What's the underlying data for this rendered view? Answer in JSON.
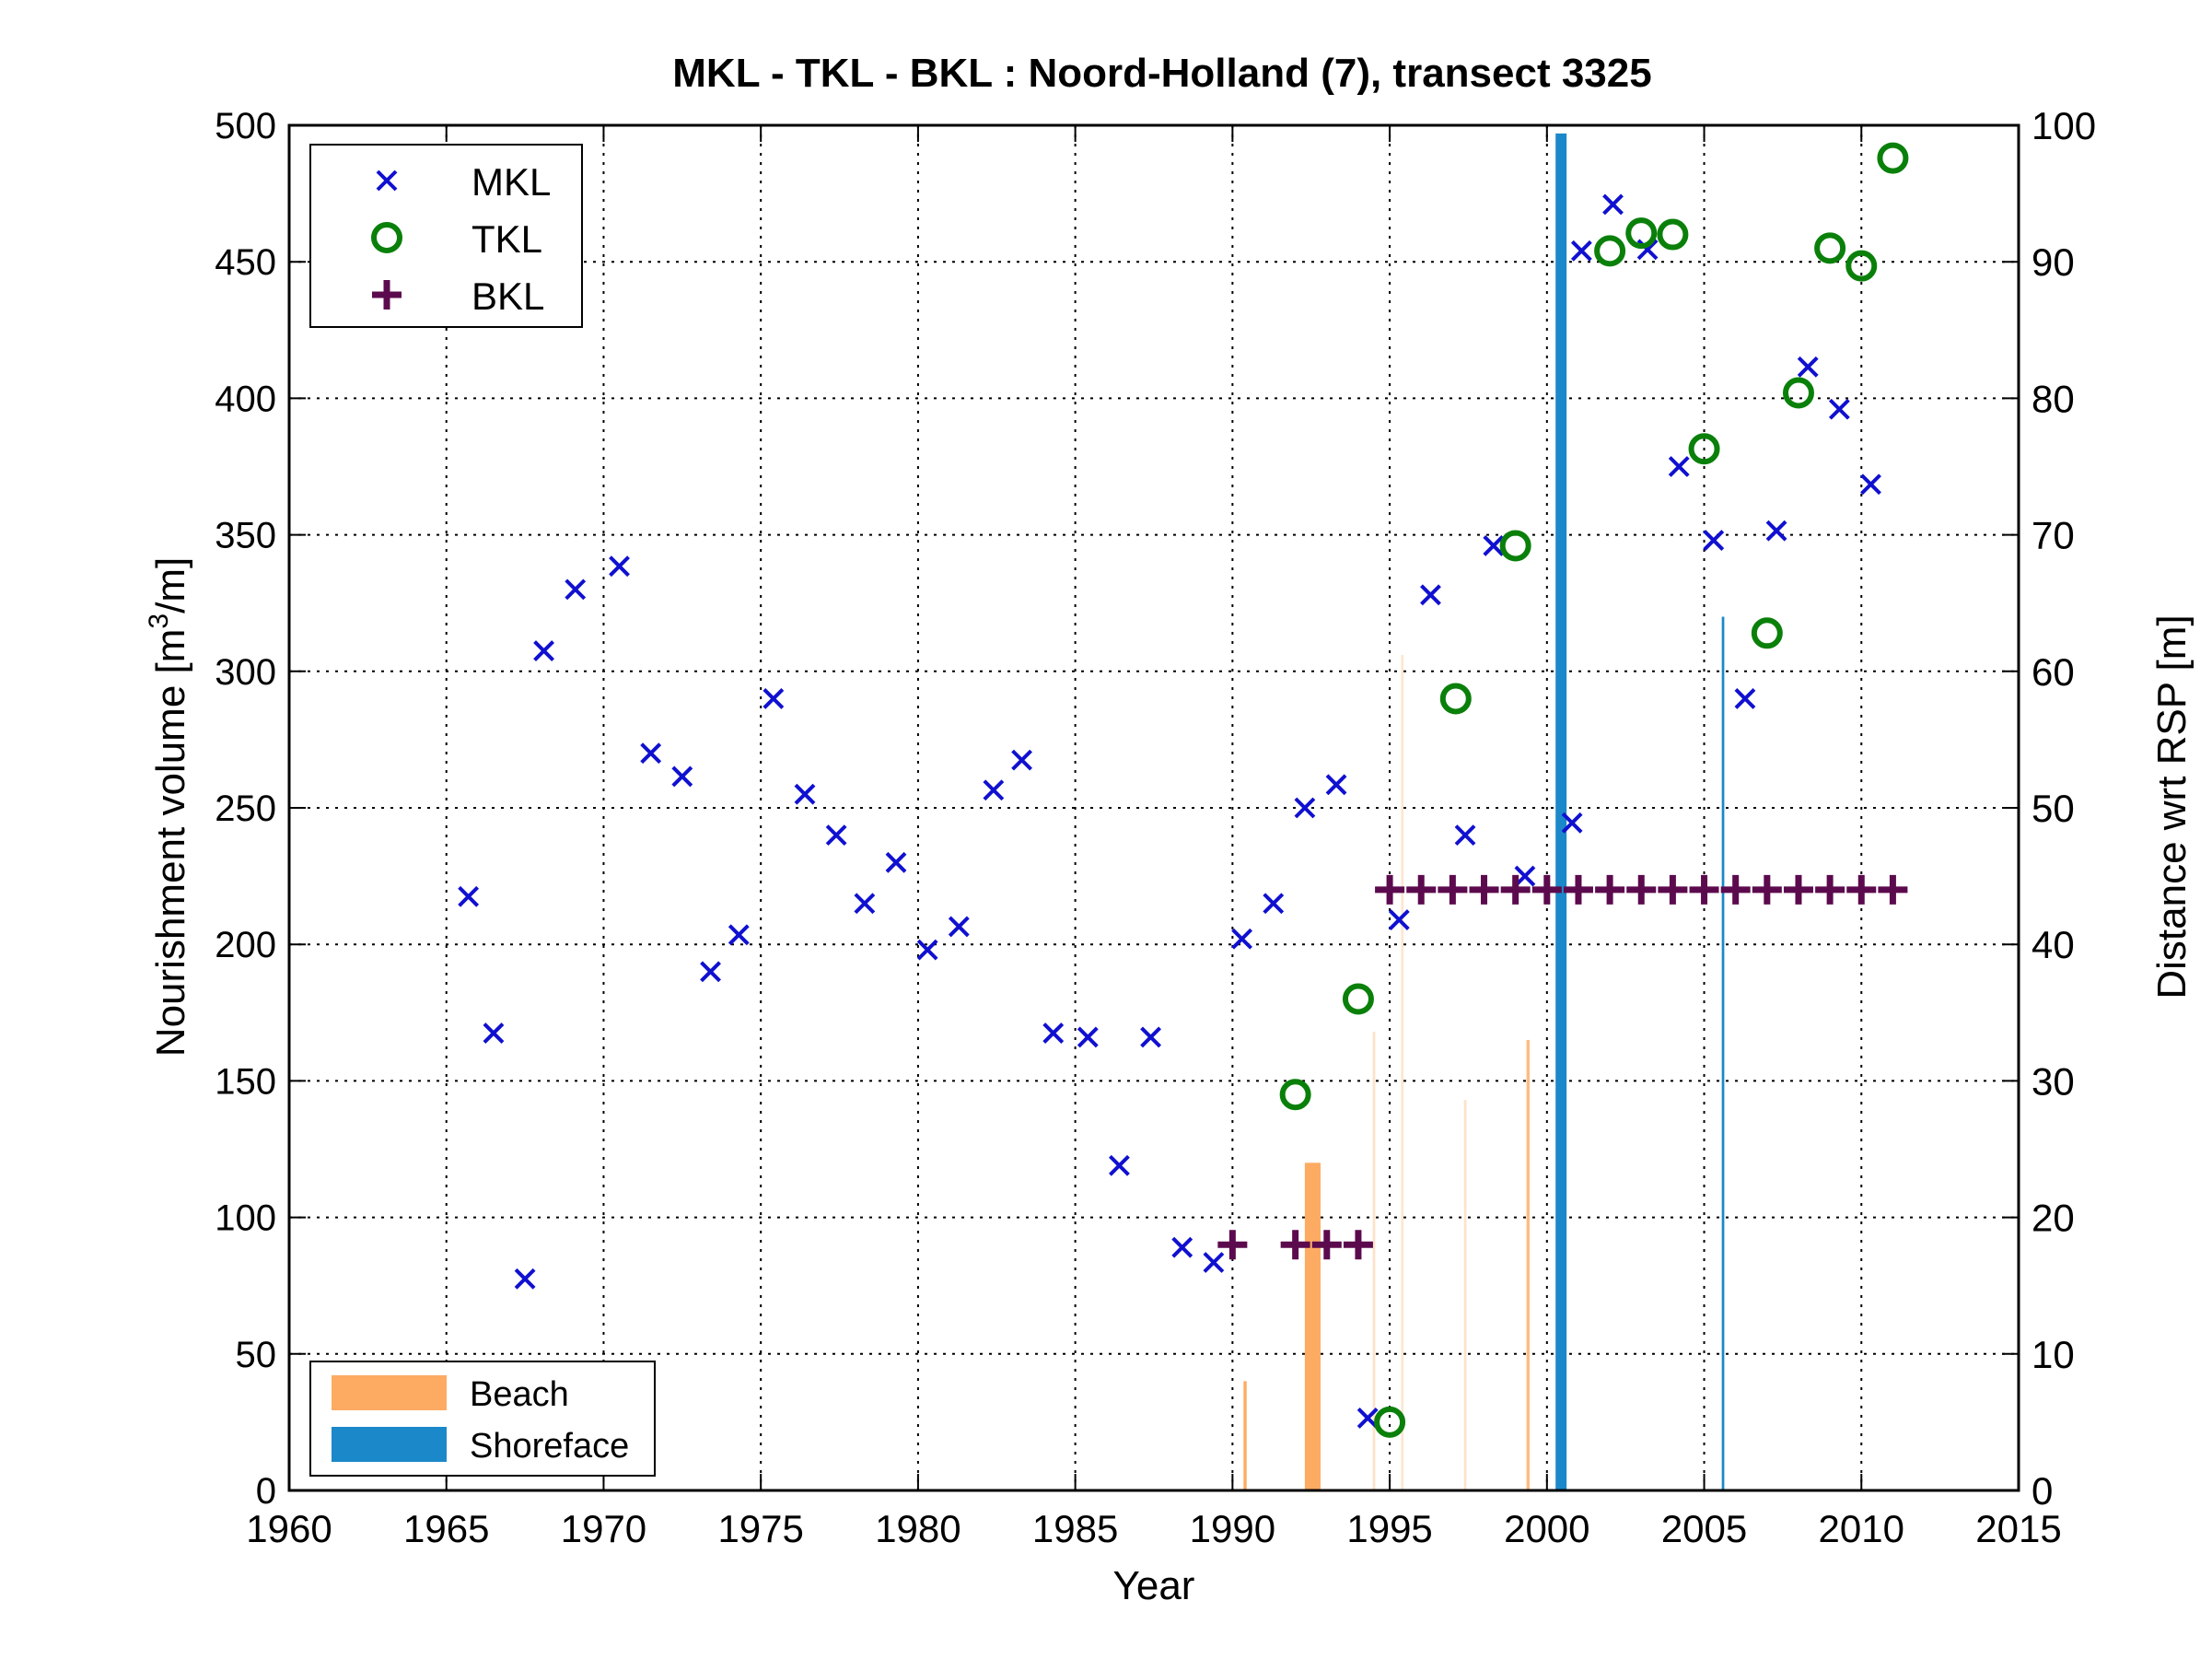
{
  "chart_data": {
    "type": "scatter",
    "title": "MKL - TKL - BKL : Noord-Holland (7), transect 3325",
    "xlabel": "Year",
    "ylabel_left_main": "Nourishment volume [m",
    "ylabel_left_sup": "3",
    "ylabel_left_tail": "/m]",
    "ylabel_right": "Distance wrt RSP [m]",
    "xlim": [
      1960,
      2015
    ],
    "ylim_left": [
      0,
      500
    ],
    "ylim_right": [
      0,
      100
    ],
    "xticks": [
      "1960",
      "1965",
      "1970",
      "1975",
      "1980",
      "1985",
      "1990",
      "1995",
      "2000",
      "2005",
      "2010",
      "2015"
    ],
    "yticks_left": [
      "0",
      "50",
      "100",
      "150",
      "200",
      "250",
      "300",
      "350",
      "400",
      "450",
      "500"
    ],
    "yticks_right": [
      "0",
      "10",
      "20",
      "30",
      "40",
      "50",
      "60",
      "70",
      "80",
      "90",
      "100"
    ],
    "grid": true,
    "colors": {
      "MKL": "#1010d0",
      "TKL": "#0a800a",
      "BKL": "#5c0a4e",
      "Beach": "#fdab63",
      "Shoreface": "#1b88c9"
    },
    "legend_points": {
      "placement": "top-left",
      "entries": [
        "MKL",
        "TKL",
        "BKL"
      ]
    },
    "legend_bars": {
      "placement": "bottom-left",
      "entries": [
        "Beach",
        "Shoreface"
      ]
    },
    "series": [
      {
        "name": "MKL",
        "marker": "x",
        "axis": "right",
        "points": [
          [
            1965.7,
            43.5
          ],
          [
            1966.5,
            33.5
          ],
          [
            1967.5,
            15.5
          ],
          [
            1968.1,
            61.5
          ],
          [
            1969.1,
            66
          ],
          [
            1970.5,
            67.7
          ],
          [
            1971.5,
            54
          ],
          [
            1972.5,
            52.3
          ],
          [
            1973.4,
            38
          ],
          [
            1974.3,
            40.7
          ],
          [
            1975.4,
            58
          ],
          [
            1976.4,
            51
          ],
          [
            1977.4,
            48
          ],
          [
            1978.3,
            43
          ],
          [
            1979.3,
            46
          ],
          [
            1980.3,
            39.6
          ],
          [
            1981.3,
            41.3
          ],
          [
            1982.4,
            51.3
          ],
          [
            1983.3,
            53.5
          ],
          [
            1984.3,
            33.5
          ],
          [
            1985.4,
            33.2
          ],
          [
            1987.4,
            33.2
          ],
          [
            1986.4,
            23.8
          ],
          [
            1988.4,
            17.8
          ],
          [
            1989.4,
            16.7
          ],
          [
            1990.3,
            40.4
          ],
          [
            1991.3,
            43
          ],
          [
            1992.3,
            50
          ],
          [
            1993.3,
            51.7
          ],
          [
            1994.3,
            5.3
          ],
          [
            1995.3,
            41.8
          ],
          [
            1996.3,
            65.6
          ],
          [
            1997.4,
            48
          ],
          [
            1998.3,
            69.2
          ],
          [
            1999.3,
            45
          ],
          [
            2000.8,
            48.9
          ],
          [
            2001.1,
            90.8
          ],
          [
            2002.1,
            94.2
          ],
          [
            2003.2,
            90.9
          ],
          [
            2004.2,
            75
          ],
          [
            2005.3,
            69.6
          ],
          [
            2006.3,
            58
          ],
          [
            2007.3,
            70.3
          ],
          [
            2008.3,
            82.3
          ],
          [
            2009.3,
            79.2
          ],
          [
            2010.3,
            73.7
          ]
        ]
      },
      {
        "name": "TKL",
        "marker": "o",
        "axis": "right",
        "points": [
          [
            1992.0,
            29
          ],
          [
            1994.0,
            36
          ],
          [
            1995.0,
            5
          ],
          [
            1997.1,
            58
          ],
          [
            1999.0,
            69.2
          ],
          [
            2002.0,
            90.8
          ],
          [
            2003.0,
            92.1
          ],
          [
            2004.0,
            92
          ],
          [
            2005.0,
            76.3
          ],
          [
            2007.0,
            62.8
          ],
          [
            2008.0,
            80.4
          ],
          [
            2009.0,
            91
          ],
          [
            2010.0,
            89.7
          ],
          [
            2011.0,
            97.6
          ]
        ]
      },
      {
        "name": "BKL",
        "marker": "+",
        "axis": "right",
        "points": [
          [
            1990.0,
            18
          ],
          [
            1992.0,
            18
          ],
          [
            1993.0,
            18
          ],
          [
            1994.0,
            18
          ],
          [
            1995.0,
            44
          ],
          [
            1996.0,
            44
          ],
          [
            1997.0,
            44
          ],
          [
            1998.0,
            44
          ],
          [
            1999.0,
            44
          ],
          [
            2000.0,
            44
          ],
          [
            2001.0,
            44
          ],
          [
            2002.0,
            44
          ],
          [
            2003.0,
            44
          ],
          [
            2004.0,
            44
          ],
          [
            2005.0,
            44
          ],
          [
            2006.0,
            44
          ],
          [
            2007.0,
            44
          ],
          [
            2008.0,
            44
          ],
          [
            2009.0,
            44
          ],
          [
            2010.0,
            44
          ],
          [
            2011.0,
            44
          ]
        ]
      }
    ],
    "bars": [
      {
        "type": "Beach",
        "x": 1990.4,
        "width": 0.1,
        "value": 40,
        "opacity": 1
      },
      {
        "type": "Beach",
        "x": 1992.55,
        "width": 0.5,
        "value": 120,
        "opacity": 1
      },
      {
        "type": "Beach",
        "x": 1994.5,
        "width": 0.08,
        "value": 168,
        "opacity": 0.35
      },
      {
        "type": "Beach",
        "x": 1995.4,
        "width": 0.08,
        "value": 306,
        "opacity": 0.3
      },
      {
        "type": "Beach",
        "x": 1997.4,
        "width": 0.08,
        "value": 143,
        "opacity": 0.35
      },
      {
        "type": "Beach",
        "x": 1999.4,
        "width": 0.1,
        "value": 165,
        "opacity": 0.8
      },
      {
        "type": "Shoreface",
        "x": 2000.45,
        "width": 0.35,
        "value": 497,
        "opacity": 1
      },
      {
        "type": "Shoreface",
        "x": 2005.6,
        "width": 0.08,
        "value": 320,
        "opacity": 1
      }
    ]
  }
}
